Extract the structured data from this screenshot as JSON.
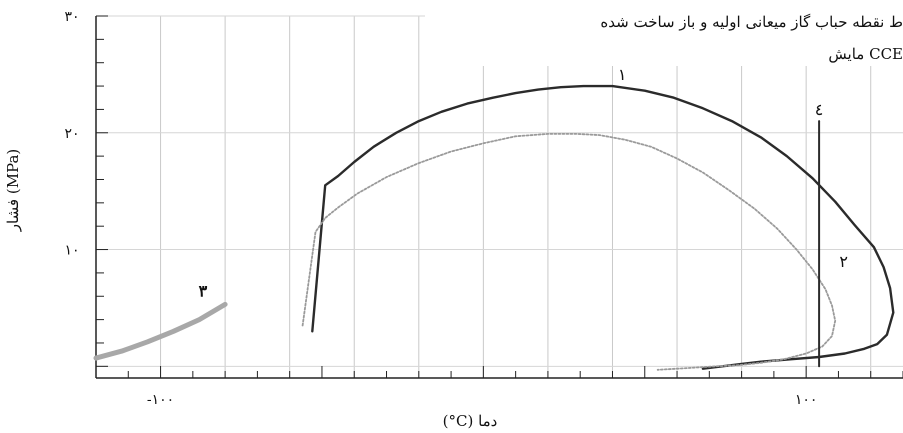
{
  "chart_data": {
    "type": "line",
    "xlabel": "(°C) دما",
    "ylabel": "فشار (MPa)",
    "xlim": [
      -120,
      130
    ],
    "ylim": [
      -1,
      30
    ],
    "grid": true,
    "x_ticks": [
      {
        "value": -100,
        "label": "-۱۰۰"
      },
      {
        "value": 100,
        "label": "۱۰۰"
      }
    ],
    "y_ticks": [
      {
        "value": 10,
        "label": "۱۰"
      },
      {
        "value": 20,
        "label": "۲۰"
      },
      {
        "value": 30,
        "label": "۳۰"
      }
    ],
    "legend": [
      "ط نقطه حباب گاز میعانی اولیه و باز ساخت شده",
      "مایش CCE"
    ],
    "series": [
      {
        "label": "۱",
        "color": "#2b2b2b",
        "style": "solid",
        "x": [
          -53,
          -49,
          -45,
          -40,
          -34,
          -27,
          -20,
          -13,
          -5,
          3,
          10,
          17,
          24,
          31,
          40,
          50,
          59,
          68,
          77,
          86,
          94,
          102,
          109,
          115,
          121,
          124,
          126,
          127,
          125,
          122,
          118,
          112,
          104,
          95,
          86,
          80,
          74,
          68
        ],
        "y": [
          3,
          15.5,
          16.3,
          17.5,
          18.8,
          20.0,
          21.0,
          21.8,
          22.5,
          23.0,
          23.4,
          23.7,
          23.9,
          24.0,
          24.0,
          23.6,
          23.0,
          22.1,
          21.0,
          19.6,
          18.0,
          16.1,
          14.1,
          12.1,
          10.2,
          8.5,
          6.7,
          4.6,
          2.7,
          1.9,
          1.5,
          1.1,
          0.8,
          0.6,
          0.4,
          0.2,
          0.0,
          -0.2
        ]
      },
      {
        "label": "۲",
        "color": "#9a9a9a",
        "style": "dotted",
        "x": [
          -56,
          -52,
          -49,
          -45,
          -39,
          -30,
          -20,
          -10,
          0,
          10,
          20,
          29,
          36,
          44,
          52,
          60,
          68,
          76,
          84,
          91,
          97,
          102,
          106,
          108,
          109,
          108,
          105,
          100,
          93,
          86,
          79,
          72,
          66,
          60,
          54
        ],
        "y": [
          3.5,
          11.5,
          12.7,
          13.6,
          14.8,
          16.2,
          17.4,
          18.4,
          19.1,
          19.7,
          19.9,
          19.9,
          19.8,
          19.4,
          18.8,
          17.8,
          16.6,
          15.1,
          13.5,
          11.8,
          10.0,
          8.3,
          6.6,
          5.2,
          3.9,
          2.6,
          1.7,
          1.1,
          0.6,
          0.3,
          0.1,
          0.0,
          -0.1,
          -0.2,
          -0.3
        ]
      },
      {
        "label": "۳",
        "color": "#a8a8a8",
        "style": "thick",
        "x": [
          -120,
          -112,
          -104,
          -96,
          -88,
          -80
        ],
        "y": [
          0.7,
          1.3,
          2.1,
          3.0,
          4.0,
          5.3
        ]
      },
      {
        "label": "٤",
        "color": "#2b2b2b",
        "style": "vertical",
        "x": [
          104,
          104
        ],
        "y": [
          0,
          21
        ]
      }
    ]
  }
}
